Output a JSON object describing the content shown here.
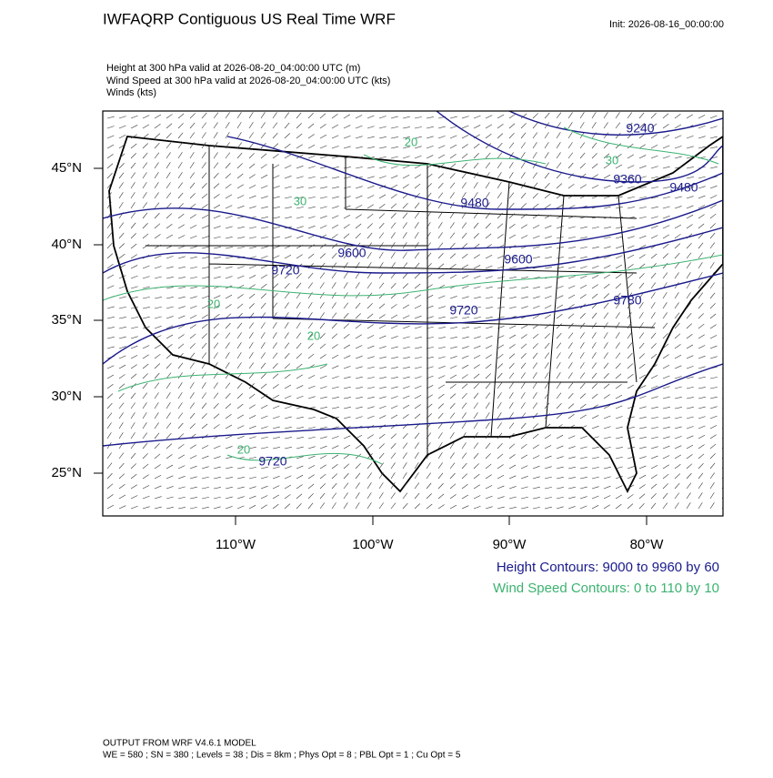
{
  "header": {
    "title": "IWFAQRP Contiguous US Real Time WRF",
    "init": "Init: 2026-08-16_00:00:00"
  },
  "fields": [
    "Height at 300 hPa valid at 2026-08-20_04:00:00 UTC   (m)",
    "Wind Speed at 300 hPa valid at 2026-08-20_04:00:00 UTC   (kts)",
    "Winds   (kts)"
  ],
  "map": {
    "lat_labels": [
      "45°N",
      "40°N",
      "35°N",
      "30°N",
      "25°N"
    ],
    "lon_labels": [
      "110°W",
      "100°W",
      "90°W",
      "80°W"
    ],
    "height_labels": [
      "9240",
      "9360",
      "9480",
      "9480",
      "9600",
      "9600",
      "9720",
      "9720",
      "9780",
      "9720"
    ],
    "wind_labels": [
      "30",
      "20",
      "30",
      "20",
      "20",
      "20"
    ]
  },
  "legend": {
    "height": "Height Contours: 9000 to 9960 by 60",
    "wind": "Wind Speed Contours: 0 to 110 by 10"
  },
  "footer": {
    "model": "OUTPUT FROM WRF V4.6.1 MODEL",
    "config": "WE = 580 ; SN = 380 ; Levels = 38 ; Dis = 8km ; Phys Opt = 8 ; PBL Opt = 1 ; Cu Opt = 5"
  }
}
